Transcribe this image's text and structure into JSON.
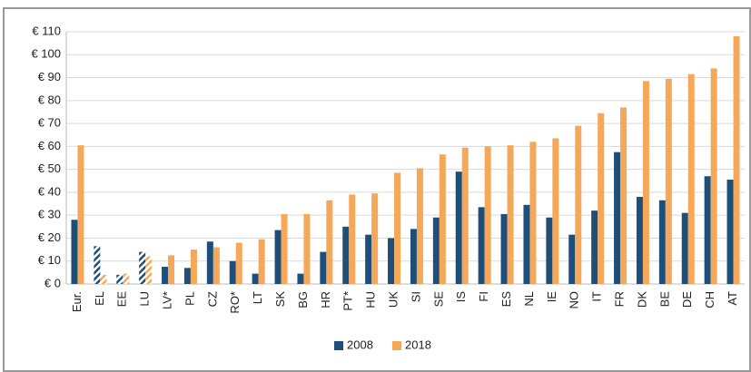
{
  "chart_data": {
    "type": "bar",
    "categories": [
      "Eur.",
      "EL",
      "EE",
      "LU",
      "LV*",
      "PL",
      "CZ",
      "RO*",
      "LT",
      "SK",
      "BG",
      "HR",
      "PT*",
      "HU",
      "UK",
      "SI",
      "SE",
      "IS",
      "FI",
      "ES",
      "NL",
      "IE",
      "NO",
      "IT",
      "FR",
      "DK",
      "BE",
      "DE",
      "CH",
      "AT"
    ],
    "series": [
      {
        "name": "2008",
        "color": "#1f4e79",
        "values": [
          28,
          16.5,
          4,
          14,
          7.5,
          7,
          18.5,
          10,
          4.5,
          23.5,
          4.5,
          14,
          25,
          21.5,
          20,
          24,
          29,
          49,
          33.5,
          30.5,
          34.5,
          29,
          21.5,
          32,
          57.5,
          38,
          36.5,
          31,
          47,
          45.5
        ]
      },
      {
        "name": "2018",
        "color": "#f5a85a",
        "values": [
          60.5,
          4,
          4.5,
          12,
          12.5,
          15,
          16,
          18,
          19.5,
          30.5,
          30.5,
          36.5,
          39,
          39.5,
          48.5,
          50.5,
          56.5,
          59.5,
          60,
          60.5,
          62,
          63.5,
          69,
          74.5,
          77,
          88.5,
          89.5,
          91.5,
          94,
          108
        ]
      }
    ],
    "hatched_categories": [
      "EL",
      "EE",
      "LU"
    ],
    "ylim": [
      0,
      110
    ],
    "yticks": [
      {
        "value": 0,
        "label": "€ 0"
      },
      {
        "value": 10,
        "label": "€ 10"
      },
      {
        "value": 20,
        "label": "€ 20"
      },
      {
        "value": 30,
        "label": "€ 30"
      },
      {
        "value": 40,
        "label": "€ 40"
      },
      {
        "value": 50,
        "label": "€ 50"
      },
      {
        "value": 60,
        "label": "€ 60"
      },
      {
        "value": 70,
        "label": "€ 70"
      },
      {
        "value": 80,
        "label": "€ 80"
      },
      {
        "value": 90,
        "label": "€ 90"
      },
      {
        "value": 100,
        "label": "€ 100"
      },
      {
        "value": 110,
        "label": "€ 110"
      }
    ],
    "grid": true,
    "legend": "bottom"
  }
}
